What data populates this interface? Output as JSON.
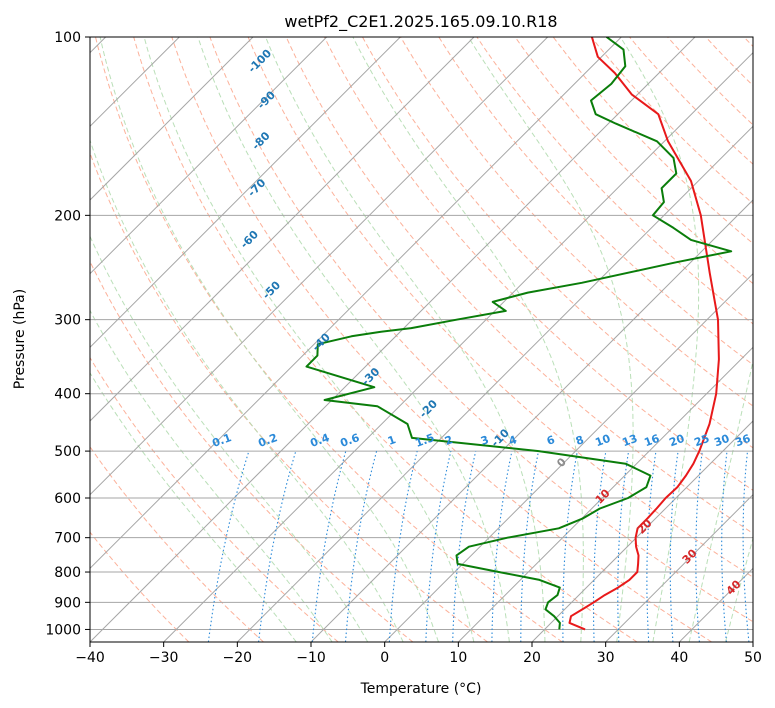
{
  "chart_data": {
    "type": "skew-t log-p diagram",
    "title": "wetPf2_C2E1.2025.165.09.10.R18",
    "xlabel": "Temperature (°C)",
    "ylabel": "Pressure (hPa)",
    "xlim": [
      -40,
      50
    ],
    "ylim_hpa": [
      1050,
      100
    ],
    "x_ticks": [
      -40,
      -30,
      -20,
      -10,
      0,
      10,
      20,
      30,
      40,
      50
    ],
    "y_ticks": [
      100,
      200,
      300,
      400,
      500,
      600,
      700,
      800,
      900,
      1000
    ],
    "x_tick_labels": [
      "−40",
      "−30",
      "−20",
      "−10",
      "0",
      "10",
      "20",
      "30",
      "40",
      "50"
    ],
    "y_tick_labels": [
      "100",
      "200",
      "300",
      "400",
      "500",
      "600",
      "700",
      "800",
      "900",
      "1000"
    ],
    "grid": true,
    "series": [
      {
        "quantity": "temperature",
        "color": "#e8191a",
        "points_T_P": [
          [
            25.5,
            1000
          ],
          [
            22.5,
            975
          ],
          [
            21.8,
            950
          ],
          [
            22.4,
            925
          ],
          [
            23.0,
            900
          ],
          [
            23.5,
            875
          ],
          [
            24.3,
            850
          ],
          [
            24.8,
            825
          ],
          [
            24.8,
            800
          ],
          [
            23.8,
            775
          ],
          [
            22.7,
            750
          ],
          [
            21.2,
            725
          ],
          [
            19.9,
            700
          ],
          [
            18.9,
            675
          ],
          [
            18.9,
            650
          ],
          [
            18.8,
            625
          ],
          [
            18.6,
            600
          ],
          [
            18.7,
            575
          ],
          [
            18.3,
            550
          ],
          [
            17.7,
            525
          ],
          [
            16.8,
            500
          ],
          [
            14.5,
            450
          ],
          [
            11.3,
            400
          ],
          [
            7.0,
            350
          ],
          [
            1.5,
            300
          ],
          [
            -6.0,
            250
          ],
          [
            -15.0,
            200
          ],
          [
            -21.0,
            175
          ],
          [
            -29.5,
            150
          ],
          [
            -34.5,
            135
          ],
          [
            -40.8,
            125
          ],
          [
            -46.0,
            115
          ],
          [
            -50.5,
            108
          ],
          [
            -54.0,
            100
          ]
        ]
      },
      {
        "quantity": "dewpoint",
        "color": "#0a7d0a",
        "points_T_P": [
          [
            22.0,
            1000
          ],
          [
            21.2,
            975
          ],
          [
            19.5,
            950
          ],
          [
            17.4,
            925
          ],
          [
            16.8,
            900
          ],
          [
            17.1,
            875
          ],
          [
            16.4,
            850
          ],
          [
            12.6,
            825
          ],
          [
            6.0,
            800
          ],
          [
            -0.7,
            775
          ],
          [
            -2.0,
            750
          ],
          [
            -1.5,
            725
          ],
          [
            2.5,
            700
          ],
          [
            8.2,
            675
          ],
          [
            10.1,
            650
          ],
          [
            11.1,
            625
          ],
          [
            13.5,
            600
          ],
          [
            14.5,
            575
          ],
          [
            13.5,
            550
          ],
          [
            8.5,
            525
          ],
          [
            -5.0,
            500
          ],
          [
            -24.0,
            475
          ],
          [
            -26.5,
            450
          ],
          [
            -33.0,
            420
          ],
          [
            -41.0,
            410
          ],
          [
            -36.0,
            390
          ],
          [
            -48.0,
            360
          ],
          [
            -48.0,
            345
          ],
          [
            -49.5,
            330
          ],
          [
            -46.0,
            320
          ],
          [
            -43.0,
            315
          ],
          [
            -39.0,
            310
          ],
          [
            -34.0,
            300
          ],
          [
            -28.5,
            290
          ],
          [
            -31.5,
            280
          ],
          [
            -28.0,
            270
          ],
          [
            -22.0,
            260
          ],
          [
            -12.0,
            240
          ],
          [
            -6.0,
            230
          ],
          [
            -13.0,
            220
          ],
          [
            -17.0,
            210
          ],
          [
            -21.5,
            200
          ],
          [
            -21.8,
            190
          ],
          [
            -24.0,
            180
          ],
          [
            -24.0,
            170
          ],
          [
            -26.5,
            160
          ],
          [
            -31.0,
            150
          ],
          [
            -39.0,
            140
          ],
          [
            -43.0,
            135
          ],
          [
            -45.5,
            128
          ],
          [
            -45.0,
            120
          ],
          [
            -45.5,
            112
          ],
          [
            -48.0,
            105
          ],
          [
            -52.0,
            100
          ]
        ]
      }
    ],
    "dry_adiabats_C": [
      -100,
      -90,
      -80,
      -70,
      -60,
      -50,
      -40,
      -30,
      -20,
      -10,
      0,
      10,
      20,
      30,
      40
    ],
    "mixing_ratio_lines_gkg": [
      "0.1",
      "0.2",
      "0.4",
      "0.6",
      "1",
      "1.5",
      "2",
      "3",
      "4",
      "6",
      "8",
      "10",
      "13",
      "16",
      "20",
      "25",
      "30",
      "36"
    ],
    "moist_adiabat_labels_C": [
      "0",
      "10",
      "20",
      "30",
      "40"
    ],
    "colors": {
      "isotherm": "#a6a6a6",
      "isobar": "#a6a6a6",
      "dry_adiabat": "#fca98f",
      "moist_adiabat": "#b2dbb0",
      "mixing_ratio": "#2b8ad9",
      "dry_adiabat_label": "#1f77b4",
      "mixing_ratio_label": "#2b8ad9",
      "moist_adiabat_label": "#d62728"
    }
  }
}
